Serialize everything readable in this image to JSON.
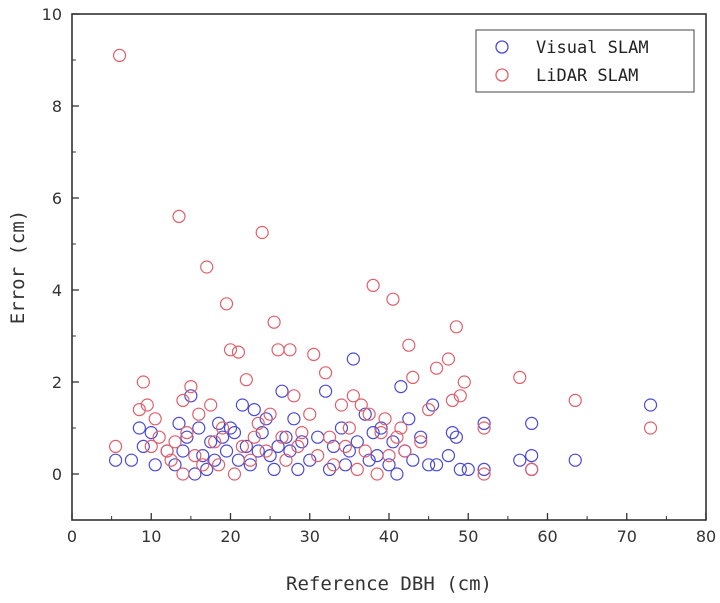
{
  "chart_data": {
    "type": "scatter",
    "title": "",
    "xlabel": "Reference DBH (cm)",
    "ylabel": "Error (cm)",
    "xlim": [
      0,
      80
    ],
    "ylim": [
      -1,
      10
    ],
    "xticks": [
      0,
      10,
      20,
      30,
      40,
      50,
      60,
      70,
      80
    ],
    "yticks": [
      0,
      2,
      4,
      6,
      8,
      10
    ],
    "grid": false,
    "legend_position": "top-right",
    "marker": "open-circle",
    "series": [
      {
        "name": "Visual SLAM",
        "color": "#4a4ad8",
        "points": [
          [
            5.5,
            0.3
          ],
          [
            7.5,
            0.3
          ],
          [
            8.5,
            1.0
          ],
          [
            9,
            0.6
          ],
          [
            10,
            0.9
          ],
          [
            10.5,
            0.2
          ],
          [
            12,
            0.5
          ],
          [
            13,
            0.2
          ],
          [
            13.5,
            1.1
          ],
          [
            14,
            0.5
          ],
          [
            14.5,
            0.8
          ],
          [
            15,
            1.7
          ],
          [
            15.5,
            0.0
          ],
          [
            16,
            1.0
          ],
          [
            16.5,
            0.4
          ],
          [
            17,
            0.1
          ],
          [
            17.5,
            0.7
          ],
          [
            18,
            0.3
          ],
          [
            18.5,
            1.1
          ],
          [
            19,
            0.8
          ],
          [
            19.5,
            0.5
          ],
          [
            20,
            1.0
          ],
          [
            20.5,
            0.9
          ],
          [
            21,
            0.3
          ],
          [
            21.5,
            1.5
          ],
          [
            22,
            0.6
          ],
          [
            22.5,
            0.2
          ],
          [
            23,
            1.4
          ],
          [
            23.5,
            0.5
          ],
          [
            24,
            0.9
          ],
          [
            24.5,
            1.2
          ],
          [
            25,
            0.4
          ],
          [
            25.5,
            0.1
          ],
          [
            26,
            0.6
          ],
          [
            26.5,
            1.8
          ],
          [
            27,
            0.8
          ],
          [
            27.5,
            0.5
          ],
          [
            28,
            1.2
          ],
          [
            28.5,
            0.1
          ],
          [
            29,
            0.7
          ],
          [
            30,
            0.3
          ],
          [
            31,
            0.8
          ],
          [
            32,
            1.8
          ],
          [
            32.5,
            0.1
          ],
          [
            33,
            0.6
          ],
          [
            34,
            1.0
          ],
          [
            34.5,
            0.2
          ],
          [
            35,
            0.5
          ],
          [
            35.5,
            2.5
          ],
          [
            36,
            0.7
          ],
          [
            37,
            1.3
          ],
          [
            37.5,
            0.3
          ],
          [
            38,
            0.9
          ],
          [
            38.5,
            0.4
          ],
          [
            39,
            1.0
          ],
          [
            40,
            0.2
          ],
          [
            40.5,
            0.7
          ],
          [
            41,
            0.0
          ],
          [
            41.5,
            1.9
          ],
          [
            42,
            0.5
          ],
          [
            42.5,
            1.2
          ],
          [
            43,
            0.3
          ],
          [
            44,
            0.8
          ],
          [
            45,
            0.2
          ],
          [
            45.5,
            1.5
          ],
          [
            46,
            0.2
          ],
          [
            47.5,
            0.4
          ],
          [
            48,
            0.9
          ],
          [
            48.5,
            0.8
          ],
          [
            49,
            0.1
          ],
          [
            50,
            0.1
          ],
          [
            52,
            1.1
          ],
          [
            52,
            0.1
          ],
          [
            56.5,
            0.3
          ],
          [
            58,
            1.1
          ],
          [
            58,
            0.4
          ],
          [
            58,
            0.1
          ],
          [
            63.5,
            0.3
          ],
          [
            73,
            1.5
          ]
        ]
      },
      {
        "name": "LiDAR SLAM",
        "color": "#e0606a",
        "points": [
          [
            6,
            9.1
          ],
          [
            5.5,
            0.6
          ],
          [
            8.5,
            1.4
          ],
          [
            9,
            2.0
          ],
          [
            9.5,
            1.5
          ],
          [
            10,
            0.6
          ],
          [
            10.5,
            1.2
          ],
          [
            11,
            0.8
          ],
          [
            12,
            0.5
          ],
          [
            12.5,
            0.3
          ],
          [
            13,
            0.7
          ],
          [
            13.5,
            5.6
          ],
          [
            14,
            0.0
          ],
          [
            14,
            1.6
          ],
          [
            14.5,
            0.9
          ],
          [
            15,
            1.9
          ],
          [
            15.5,
            0.4
          ],
          [
            16,
            1.3
          ],
          [
            16.5,
            0.2
          ],
          [
            17,
            4.5
          ],
          [
            17.5,
            1.5
          ],
          [
            18,
            0.7
          ],
          [
            18.5,
            0.2
          ],
          [
            19,
            1.0
          ],
          [
            19.5,
            3.7
          ],
          [
            20,
            2.7
          ],
          [
            20.5,
            0.0
          ],
          [
            21,
            2.65
          ],
          [
            21.5,
            0.6
          ],
          [
            22,
            2.05
          ],
          [
            22.5,
            0.3
          ],
          [
            23,
            0.8
          ],
          [
            23.5,
            1.1
          ],
          [
            24,
            5.25
          ],
          [
            24.5,
            0.5
          ],
          [
            25,
            1.3
          ],
          [
            25.5,
            3.3
          ],
          [
            26,
            2.7
          ],
          [
            26.5,
            0.8
          ],
          [
            27,
            0.3
          ],
          [
            27.5,
            2.7
          ],
          [
            28,
            1.7
          ],
          [
            28.5,
            0.6
          ],
          [
            29,
            0.9
          ],
          [
            30,
            1.3
          ],
          [
            30.5,
            2.6
          ],
          [
            31,
            0.4
          ],
          [
            32,
            2.2
          ],
          [
            32.5,
            0.8
          ],
          [
            33,
            0.2
          ],
          [
            34,
            1.5
          ],
          [
            34.5,
            0.6
          ],
          [
            35,
            1.0
          ],
          [
            35.5,
            1.7
          ],
          [
            36,
            0.1
          ],
          [
            36.5,
            1.5
          ],
          [
            37,
            0.5
          ],
          [
            37.5,
            1.3
          ],
          [
            38,
            4.1
          ],
          [
            38.5,
            0.0
          ],
          [
            39,
            0.9
          ],
          [
            39.5,
            1.2
          ],
          [
            40,
            0.4
          ],
          [
            40.5,
            3.8
          ],
          [
            41,
            0.8
          ],
          [
            41.5,
            1.0
          ],
          [
            42,
            0.5
          ],
          [
            42.5,
            2.8
          ],
          [
            43,
            2.1
          ],
          [
            44,
            0.7
          ],
          [
            45,
            1.4
          ],
          [
            46,
            2.3
          ],
          [
            47.5,
            2.5
          ],
          [
            48,
            1.6
          ],
          [
            48.5,
            3.2
          ],
          [
            49,
            1.7
          ],
          [
            49.5,
            2.0
          ],
          [
            52,
            1.0
          ],
          [
            52,
            0.0
          ],
          [
            56.5,
            2.1
          ],
          [
            58,
            0.1
          ],
          [
            63.5,
            1.6
          ],
          [
            73,
            1.0
          ]
        ]
      }
    ]
  }
}
